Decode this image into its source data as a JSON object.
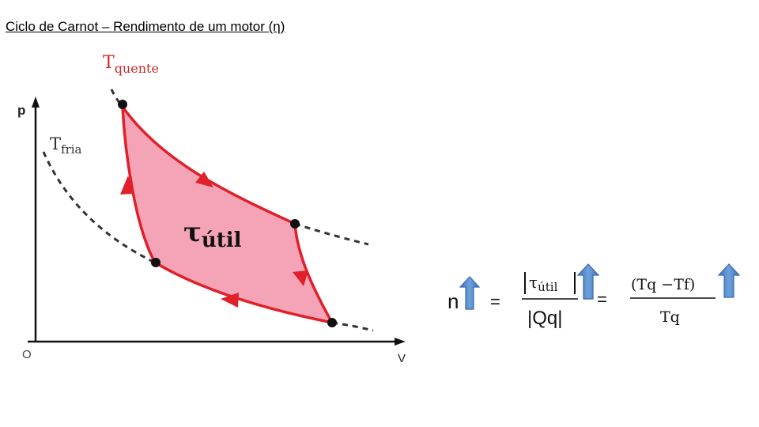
{
  "title": "Ciclo de Carnot – Rendimento de um motor (η)",
  "diagram": {
    "axis_y_label": "p",
    "axis_x_label": "V",
    "origin_label": "O",
    "hot_label": {
      "main": "T",
      "sub": "quente"
    },
    "cold_label": {
      "main": "T",
      "sub": "fria"
    },
    "work_label": {
      "main": "τ",
      "sub": "útil"
    },
    "colors": {
      "cycle_fill": "#f4a4b6",
      "cycle_stroke": "#e0202a",
      "hot_label": "#cc2a2a",
      "isotherm": "#333333",
      "arrow_up": "#4f86c6"
    }
  },
  "formula": {
    "eta": "n",
    "equals1": "=",
    "numerator1": {
      "main": "τ",
      "sub": "útil"
    },
    "denominator1": "|Qq|",
    "equals2": "=",
    "numerator2": "(Tq −Tf)",
    "denominator2": "Tq"
  }
}
